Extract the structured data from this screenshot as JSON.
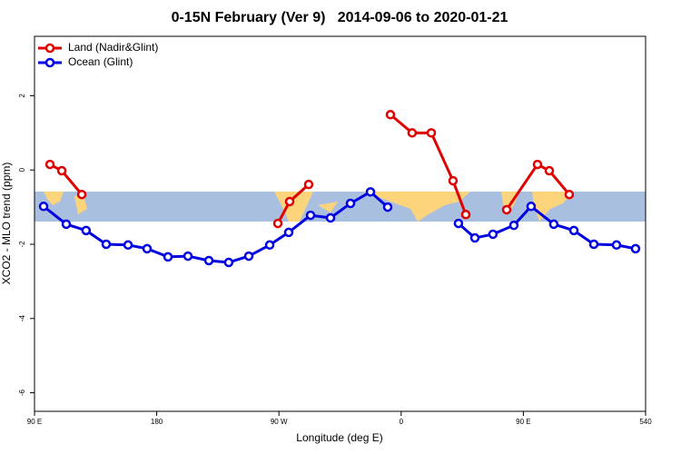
{
  "chart_data": {
    "type": "line",
    "title": "0-15N February (Ver 9)   2014-09-06 to 2020-01-21",
    "xlabel": "Longitude (deg E)",
    "ylabel": "XCO2 - MLO trend (ppm)",
    "xlim": [
      90,
      540
    ],
    "xticks": [
      {
        "value": 90,
        "label": "90 E"
      },
      180,
      {
        "value": 270,
        "label": "90 W"
      },
      {
        "value": 360,
        "label": "0"
      },
      {
        "value": 450,
        "label": "90 E"
      },
      540
    ],
    "ylim": [
      -6.5,
      3.6
    ],
    "yticks": [
      -6,
      -4,
      -2,
      0,
      2
    ],
    "legend": "top-left",
    "series": [
      {
        "name": "Land (Nadir&Glint)",
        "color": "#e00000",
        "x": [
          101.4,
          110.1,
          124.8,
          null,
          269.2,
          277.9,
          291.9,
          null,
          352.1,
          368.1,
          382.2,
          398.2,
          407.6,
          null,
          437.7,
          460.4,
          469.1,
          483.8
        ],
        "values": [
          0.15,
          -0.02,
          -0.66,
          null,
          -1.44,
          -0.85,
          -0.39,
          null,
          1.49,
          1.0,
          1.0,
          -0.29,
          -1.2,
          null,
          -1.07,
          0.15,
          -0.02,
          -0.66
        ]
      },
      {
        "name": "Ocean (Glint)",
        "color": "#0000e0",
        "x": [
          96.7,
          113.4,
          128.0,
          142.8,
          158.9,
          172.9,
          188.3,
          203.0,
          218.4,
          233.0,
          247.8,
          263.2,
          277.2,
          293.3,
          308.0,
          322.7,
          337.4,
          350.1,
          null,
          402.2,
          414.3,
          427.6,
          443.0,
          455.7,
          472.4,
          487.2,
          501.9,
          518.6,
          532.6
        ],
        "values": [
          -0.98,
          -1.46,
          -1.63,
          -2.0,
          -2.02,
          -2.12,
          -2.34,
          -2.32,
          -2.44,
          -2.49,
          -2.32,
          -2.02,
          -1.68,
          -1.22,
          -1.29,
          -0.9,
          -0.59,
          -1.0,
          null,
          -1.44,
          -1.83,
          -1.73,
          -1.49,
          -0.98,
          -1.46,
          -1.63,
          -2.0,
          -2.02,
          -2.12
        ]
      }
    ]
  }
}
